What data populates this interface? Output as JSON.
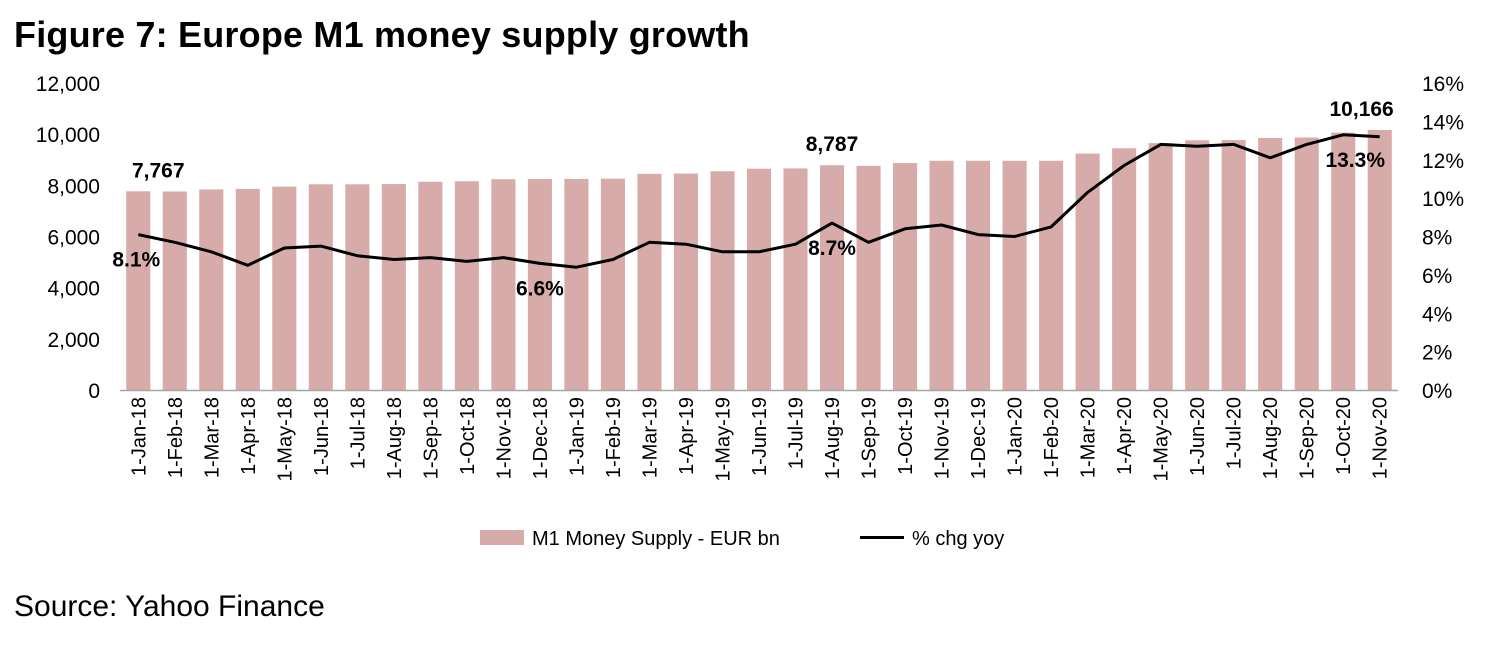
{
  "header": {
    "title": "Figure 7: Europe M1 money supply growth"
  },
  "footer": {
    "source": "Source: Yahoo Finance"
  },
  "colors": {
    "bar": "#d8abab",
    "line": "#000000",
    "axis": "#a6a6a6"
  },
  "chart_data": {
    "type": "bar+line",
    "title": "Figure 7: Europe M1 money supply growth",
    "categories": [
      "1-Jan-18",
      "1-Feb-18",
      "1-Mar-18",
      "1-Apr-18",
      "1-May-18",
      "1-Jun-18",
      "1-Jul-18",
      "1-Aug-18",
      "1-Sep-18",
      "1-Oct-18",
      "1-Nov-18",
      "1-Dec-18",
      "1-Jan-19",
      "1-Feb-19",
      "1-Mar-19",
      "1-Apr-19",
      "1-May-19",
      "1-Jun-19",
      "1-Jul-19",
      "1-Aug-19",
      "1-Sep-19",
      "1-Oct-19",
      "1-Nov-19",
      "1-Dec-19",
      "1-Jan-20",
      "1-Feb-20",
      "1-Mar-20",
      "1-Apr-20",
      "1-May-20",
      "1-Jun-20",
      "1-Jul-20",
      "1-Aug-20",
      "1-Sep-20",
      "1-Oct-20",
      "1-Nov-20"
    ],
    "series": [
      {
        "name": "M1 Money Supply - EUR bn",
        "type": "bar",
        "axis": "left",
        "values": [
          7767,
          7760,
          7840,
          7860,
          7950,
          8040,
          8040,
          8050,
          8140,
          8160,
          8240,
          8250,
          8250,
          8260,
          8450,
          8460,
          8550,
          8650,
          8660,
          8787,
          8760,
          8870,
          8960,
          8960,
          8960,
          8960,
          9240,
          9450,
          9650,
          9760,
          9770,
          9850,
          9870,
          10060,
          10166
        ]
      },
      {
        "name": "% chg yoy",
        "type": "line",
        "axis": "right",
        "values": [
          8.1,
          7.7,
          7.2,
          6.5,
          7.4,
          7.5,
          7.0,
          6.8,
          6.9,
          6.7,
          6.9,
          6.6,
          6.4,
          6.8,
          7.7,
          7.6,
          7.2,
          7.2,
          7.6,
          8.7,
          7.7,
          8.4,
          8.6,
          8.1,
          8.0,
          8.5,
          10.3,
          11.7,
          12.8,
          12.7,
          12.8,
          12.1,
          12.8,
          13.3,
          13.2
        ]
      }
    ],
    "left_axis": {
      "min": 0,
      "max": 12000,
      "ticks": [
        "0",
        "2,000",
        "4,000",
        "6,000",
        "8,000",
        "10,000",
        "12,000"
      ]
    },
    "right_axis": {
      "min": 0,
      "max": 16,
      "ticks": [
        "0%",
        "2%",
        "4%",
        "6%",
        "8%",
        "10%",
        "12%",
        "14%",
        "16%"
      ]
    },
    "annotations": [
      {
        "series": 0,
        "index": 0,
        "text": "7,767"
      },
      {
        "series": 0,
        "index": 19,
        "text": "8,787"
      },
      {
        "series": 0,
        "index": 34,
        "text": "10,166"
      },
      {
        "series": 1,
        "index": 0,
        "text": "8.1%"
      },
      {
        "series": 1,
        "index": 11,
        "text": "6.6%"
      },
      {
        "series": 1,
        "index": 19,
        "text": "8.7%"
      },
      {
        "series": 1,
        "index": 33,
        "text": "13.3%"
      }
    ],
    "legend": {
      "position": "bottom",
      "items": [
        "M1 Money Supply - EUR bn",
        "% chg yoy"
      ]
    }
  }
}
